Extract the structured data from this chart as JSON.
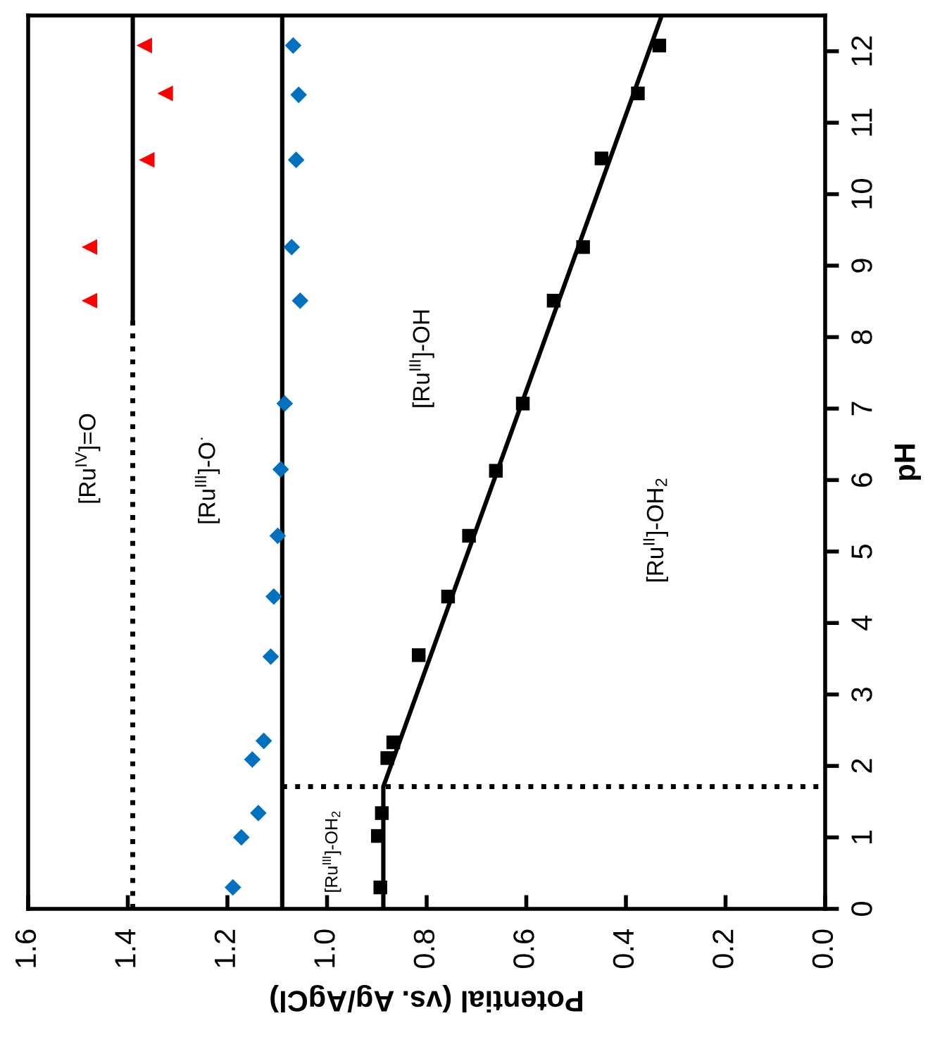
{
  "chart_data": {
    "type": "scatter",
    "xlabel": "Potential (vs. Ag/AgCl)",
    "ylabel": "pH",
    "xlim": [
      1.6,
      0.0
    ],
    "xticks": [
      1.6,
      1.4,
      1.2,
      {
        "value": 1,
        "label": "1.0"
      },
      0.8,
      0.6,
      0.4,
      0.2,
      {
        "value": 0,
        "label": "0.0"
      }
    ],
    "ylim": [
      0,
      12.5
    ],
    "yticks": [
      0,
      1,
      2,
      3,
      4,
      5,
      6,
      7,
      8,
      9,
      10,
      11,
      12
    ],
    "ref_lines": [
      {
        "axis": "x",
        "value": 1.09,
        "color": "#000000",
        "line_style": "solid"
      }
    ],
    "series": [
      {
        "type": "line",
        "color": "#000000",
        "marker": "none",
        "line_style": "dotted",
        "x": [
          1.39,
          1.39
        ],
        "values": [
          0,
          8.26
        ]
      },
      {
        "type": "line",
        "color": "#000000",
        "marker": "none",
        "line_style": "solid",
        "x": [
          1.39,
          1.39
        ],
        "values": [
          8.26,
          12.5
        ]
      },
      {
        "type": "line",
        "color": "#000000",
        "marker": "none",
        "line_style": "solid",
        "x": [
          0.887,
          0.887,
          0.328
        ],
        "values": [
          0,
          1.71,
          12.5
        ]
      },
      {
        "type": "line",
        "color": "#000000",
        "marker": "none",
        "line_style": "dotted",
        "x": [
          1.09,
          0.0
        ],
        "values": [
          1.71,
          1.71
        ]
      },
      {
        "color": "#000000",
        "marker": "square",
        "x": [
          0.893,
          0.898,
          0.89,
          0.879,
          0.867,
          0.816,
          0.757,
          0.715,
          0.661,
          0.607,
          0.545,
          0.486,
          0.449,
          0.376,
          0.333
        ],
        "values": [
          0.3,
          1.02,
          1.34,
          2.11,
          2.33,
          3.55,
          4.37,
          5.22,
          6.13,
          7.07,
          8.51,
          9.26,
          10.5,
          11.41,
          12.08
        ]
      },
      {
        "color": "#0070c0",
        "marker": "diamond",
        "x": [
          1.189,
          1.172,
          1.138,
          1.15,
          1.127,
          1.113,
          1.107,
          1.099,
          1.093,
          1.085,
          1.054,
          1.071,
          1.062,
          1.057,
          1.068
        ],
        "values": [
          0.3,
          1.0,
          1.34,
          2.09,
          2.35,
          3.53,
          4.37,
          5.22,
          6.15,
          7.07,
          8.51,
          9.26,
          10.48,
          11.39,
          12.08
        ]
      },
      {
        "color": "#ff0000",
        "marker": "triangle",
        "x": [
          1.477,
          1.477,
          1.362,
          1.325,
          1.367
        ],
        "values": [
          8.51,
          9.26,
          10.48,
          11.41,
          12.08
        ]
      }
    ],
    "annotations": [
      "[Ru$^{IV}$]=O",
      "[Ru$^{III}$]-O$^{·}$",
      "[Ru$^{III}$]-OH",
      "[Ru$^{II}$]-OH$_{2}$",
      "[Ru$^{III}$]-OH$_{2}$"
    ]
  }
}
